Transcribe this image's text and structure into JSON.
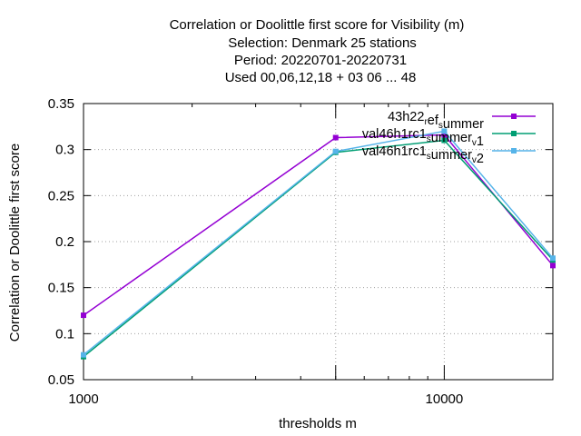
{
  "chart_data": {
    "type": "line",
    "title_lines": [
      "Correlation or Doolittle first score  for Visibility (m)",
      "Selection: Denmark     25 stations",
      "Period: 20220701-20220731",
      "Used  00,06,12,18  + 03 06 ... 48"
    ],
    "xlabel": "thresholds m",
    "ylabel": "Correlation or Doolittle first score",
    "x_scale": "log",
    "xlim": [
      1000,
      20000
    ],
    "ylim": [
      0.05,
      0.35
    ],
    "x_ticks": [
      {
        "value": 1000,
        "label": "1000"
      },
      {
        "value": 10000,
        "label": "10000"
      }
    ],
    "y_ticks": [
      {
        "value": 0.05,
        "label": "0.05"
      },
      {
        "value": 0.1,
        "label": "0.1"
      },
      {
        "value": 0.15,
        "label": "0.15"
      },
      {
        "value": 0.2,
        "label": "0.2"
      },
      {
        "value": 0.25,
        "label": "0.25"
      },
      {
        "value": 0.3,
        "label": "0.3"
      },
      {
        "value": 0.35,
        "label": "0.35"
      }
    ],
    "x_minor_ticks": [
      2000,
      3000,
      4000,
      5000,
      6000,
      7000,
      8000,
      9000
    ],
    "x_major_tick_marks": [
      5000,
      10000,
      20000
    ],
    "grid": true,
    "legend_position": "top-right",
    "series": [
      {
        "name": "43h22_ref_summer",
        "legend_parts": [
          {
            "t": "43h22"
          },
          {
            "t": "r",
            "sub": true
          },
          {
            "t": "ef"
          },
          {
            "t": "s",
            "sub": true
          },
          {
            "t": "ummer"
          }
        ],
        "color": "#9400d3",
        "x": [
          1000,
          5000,
          10000,
          20000
        ],
        "y": [
          0.12,
          0.313,
          0.316,
          0.174
        ]
      },
      {
        "name": "val46h1rc1_summer_v1",
        "legend_parts": [
          {
            "t": "val46h1rc1"
          },
          {
            "t": "s",
            "sub": true
          },
          {
            "t": "ummer"
          },
          {
            "t": "v",
            "sub": true
          },
          {
            "t": "1"
          }
        ],
        "color": "#009e73",
        "x": [
          1000,
          5000,
          10000,
          20000
        ],
        "y": [
          0.075,
          0.297,
          0.31,
          0.18
        ]
      },
      {
        "name": "val46h1rc1_summer_v2",
        "legend_parts": [
          {
            "t": "val46h1rc1"
          },
          {
            "t": "s",
            "sub": true
          },
          {
            "t": "ummer"
          },
          {
            "t": "v",
            "sub": true
          },
          {
            "t": "2"
          }
        ],
        "color": "#56b4e9",
        "x": [
          1000,
          5000,
          10000,
          20000
        ],
        "y": [
          0.077,
          0.298,
          0.32,
          0.182
        ]
      }
    ]
  }
}
